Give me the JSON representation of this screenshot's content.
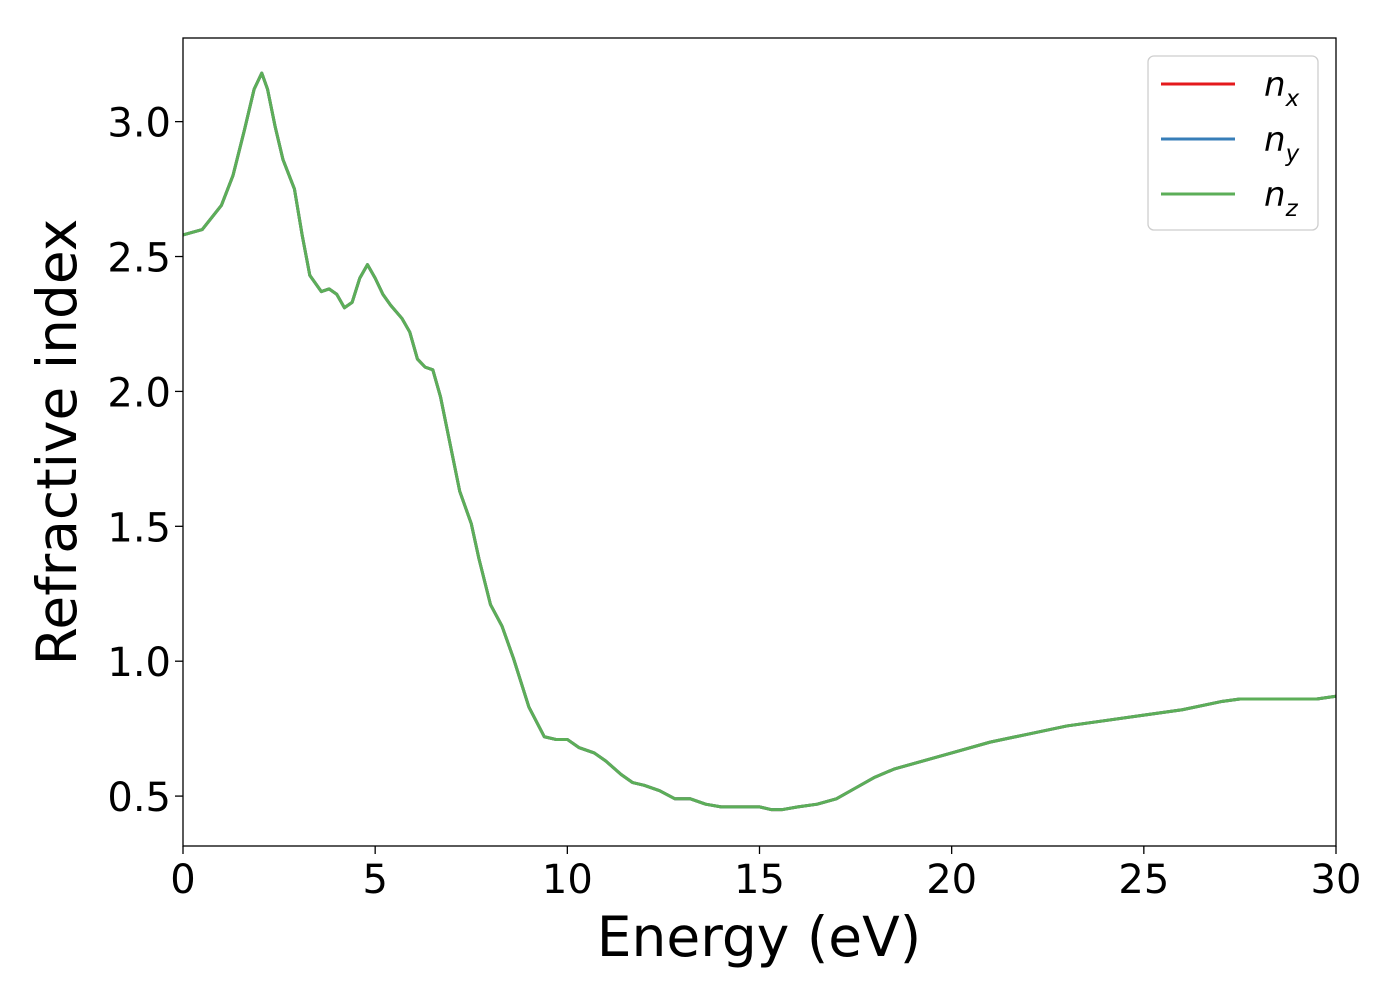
{
  "chart_data": {
    "type": "line",
    "title": "",
    "xlabel": "Energy (eV)",
    "ylabel": "Refractive index",
    "xlim": [
      0,
      30
    ],
    "ylim": [
      0.315,
      3.31
    ],
    "xticks": [
      0,
      5,
      10,
      15,
      20,
      25,
      30
    ],
    "xtick_labels": [
      "0",
      "5",
      "10",
      "15",
      "20",
      "25",
      "30"
    ],
    "yticks": [
      0.5,
      1.0,
      1.5,
      2.0,
      2.5,
      3.0
    ],
    "ytick_labels": [
      "0.5",
      "1.0",
      "1.5",
      "2.0",
      "2.5",
      "3.0"
    ],
    "grid": false,
    "legend": "top-right",
    "x": [
      0,
      0.5,
      1,
      1.3,
      1.6,
      1.85,
      2.05,
      2.2,
      2.4,
      2.6,
      2.9,
      3.1,
      3.3,
      3.6,
      3.8,
      4.0,
      4.2,
      4.4,
      4.6,
      4.8,
      5.0,
      5.2,
      5.4,
      5.7,
      5.9,
      6.1,
      6.3,
      6.5,
      6.7,
      7.0,
      7.2,
      7.5,
      7.7,
      8.0,
      8.3,
      8.6,
      9.0,
      9.4,
      9.7,
      10.0,
      10.3,
      10.7,
      11.0,
      11.4,
      11.7,
      12.0,
      12.4,
      12.8,
      13.2,
      13.6,
      14.0,
      14.5,
      15.0,
      15.3,
      15.6,
      16.0,
      16.5,
      17.0,
      17.5,
      18.0,
      18.5,
      19.0,
      19.5,
      20.0,
      21.0,
      22.0,
      23.0,
      24.0,
      25.0,
      26.0,
      27.0,
      27.5,
      28.0,
      28.5,
      29.0,
      29.5,
      30.0
    ],
    "series": [
      {
        "name": "n_x",
        "label_main": "n",
        "label_sub": "x",
        "color": "#e41a1c",
        "values": [
          2.58,
          2.6,
          2.69,
          2.8,
          2.97,
          3.12,
          3.18,
          3.12,
          2.98,
          2.86,
          2.75,
          2.58,
          2.43,
          2.37,
          2.38,
          2.36,
          2.31,
          2.33,
          2.42,
          2.47,
          2.42,
          2.36,
          2.32,
          2.27,
          2.22,
          2.12,
          2.09,
          2.08,
          1.98,
          1.77,
          1.63,
          1.51,
          1.38,
          1.21,
          1.13,
          1.01,
          0.83,
          0.72,
          0.71,
          0.71,
          0.68,
          0.66,
          0.63,
          0.58,
          0.55,
          0.54,
          0.52,
          0.49,
          0.49,
          0.47,
          0.46,
          0.46,
          0.46,
          0.45,
          0.45,
          0.46,
          0.47,
          0.49,
          0.53,
          0.57,
          0.6,
          0.62,
          0.64,
          0.66,
          0.7,
          0.73,
          0.76,
          0.78,
          0.8,
          0.82,
          0.85,
          0.86,
          0.86,
          0.86,
          0.86,
          0.86,
          0.87
        ]
      },
      {
        "name": "n_y",
        "label_main": "n",
        "label_sub": "y",
        "color": "#377eb8",
        "values": [
          2.58,
          2.6,
          2.69,
          2.8,
          2.97,
          3.12,
          3.18,
          3.12,
          2.98,
          2.86,
          2.75,
          2.58,
          2.43,
          2.37,
          2.38,
          2.36,
          2.31,
          2.33,
          2.42,
          2.47,
          2.42,
          2.36,
          2.32,
          2.27,
          2.22,
          2.12,
          2.09,
          2.08,
          1.98,
          1.77,
          1.63,
          1.51,
          1.38,
          1.21,
          1.13,
          1.01,
          0.83,
          0.72,
          0.71,
          0.71,
          0.68,
          0.66,
          0.63,
          0.58,
          0.55,
          0.54,
          0.52,
          0.49,
          0.49,
          0.47,
          0.46,
          0.46,
          0.46,
          0.45,
          0.45,
          0.46,
          0.47,
          0.49,
          0.53,
          0.57,
          0.6,
          0.62,
          0.64,
          0.66,
          0.7,
          0.73,
          0.76,
          0.78,
          0.8,
          0.82,
          0.85,
          0.86,
          0.86,
          0.86,
          0.86,
          0.86,
          0.87
        ]
      },
      {
        "name": "n_z",
        "label_main": "n",
        "label_sub": "z",
        "color": "#5cae58",
        "values": [
          2.58,
          2.6,
          2.69,
          2.8,
          2.97,
          3.12,
          3.18,
          3.12,
          2.98,
          2.86,
          2.75,
          2.58,
          2.43,
          2.37,
          2.38,
          2.36,
          2.31,
          2.33,
          2.42,
          2.47,
          2.42,
          2.36,
          2.32,
          2.27,
          2.22,
          2.12,
          2.09,
          2.08,
          1.98,
          1.77,
          1.63,
          1.51,
          1.38,
          1.21,
          1.13,
          1.01,
          0.83,
          0.72,
          0.71,
          0.71,
          0.68,
          0.66,
          0.63,
          0.58,
          0.55,
          0.54,
          0.52,
          0.49,
          0.49,
          0.47,
          0.46,
          0.46,
          0.46,
          0.45,
          0.45,
          0.46,
          0.47,
          0.49,
          0.53,
          0.57,
          0.6,
          0.62,
          0.64,
          0.66,
          0.7,
          0.73,
          0.76,
          0.78,
          0.8,
          0.82,
          0.85,
          0.86,
          0.86,
          0.86,
          0.86,
          0.86,
          0.87
        ]
      }
    ]
  }
}
